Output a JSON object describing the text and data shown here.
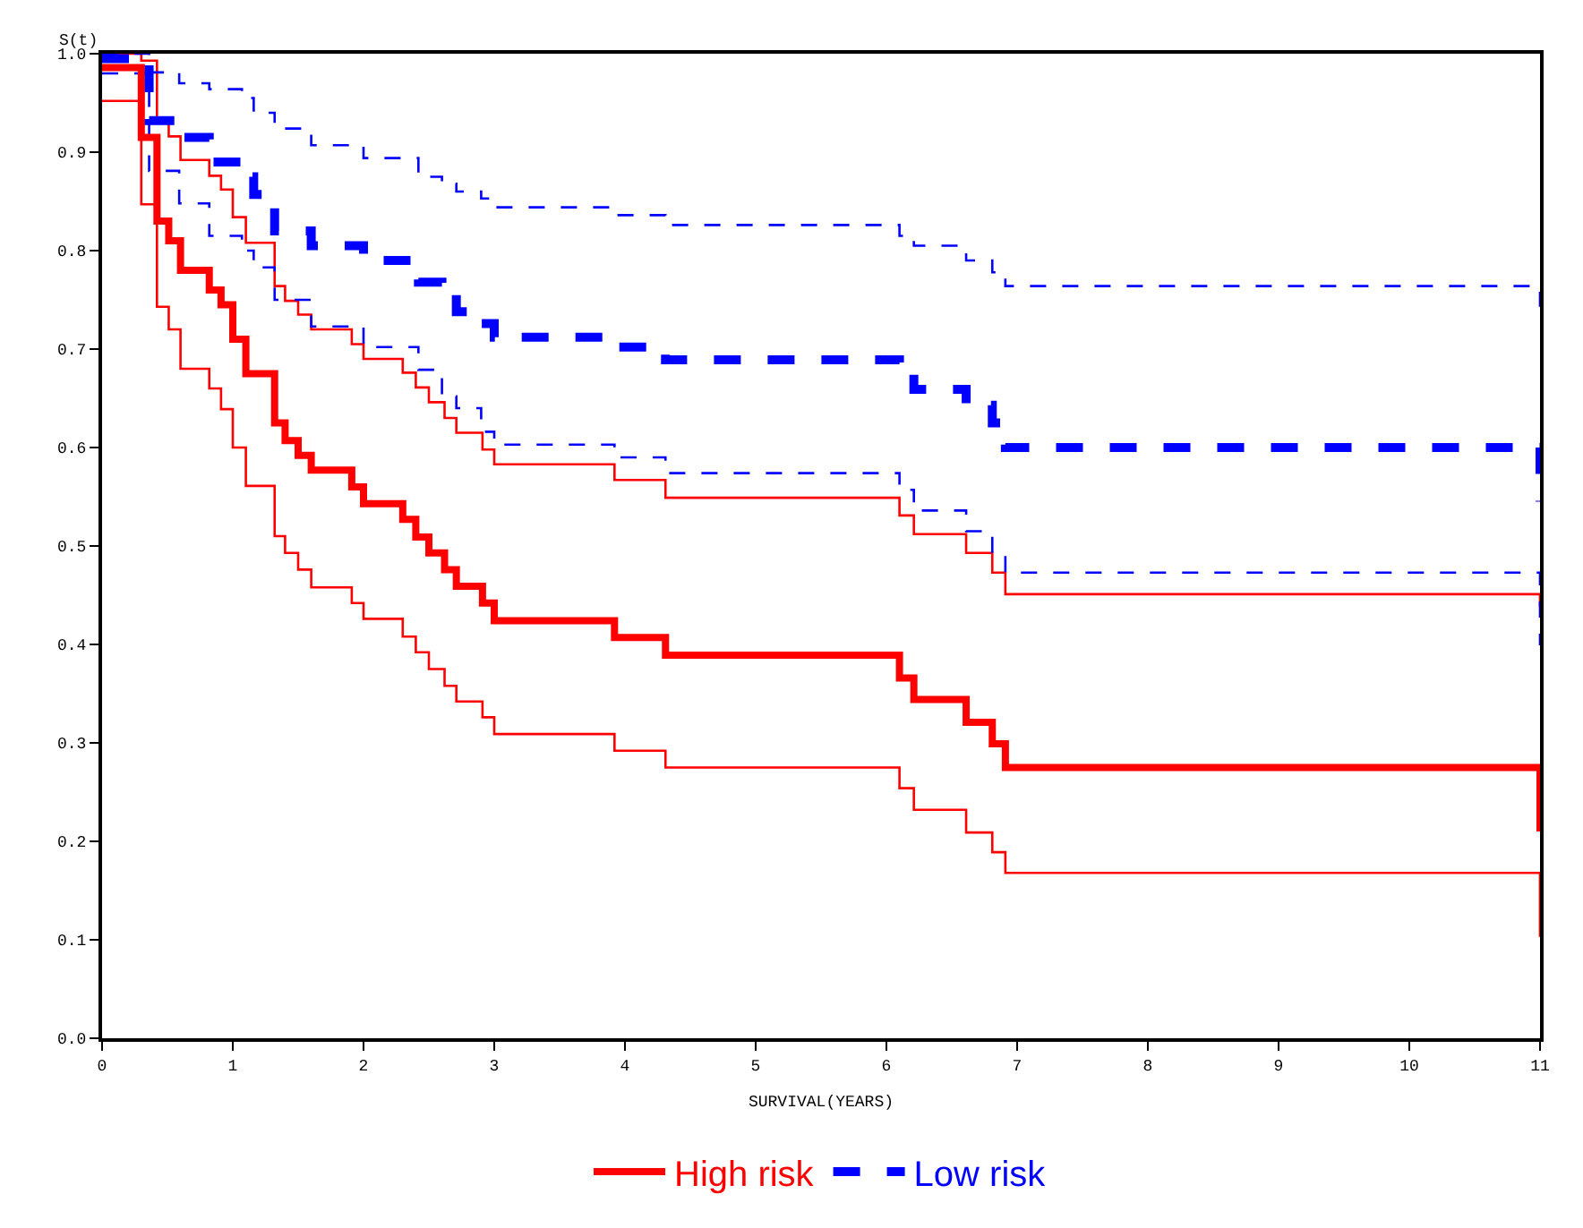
{
  "chart_data": {
    "type": "step",
    "xlabel": "SURVIVAL(YEARS)",
    "ylabel": "S(t)",
    "xlim": [
      0,
      11
    ],
    "xticks": [
      0,
      1,
      2,
      3,
      4,
      5,
      6,
      7,
      8,
      9,
      10,
      11
    ],
    "ylim": [
      0,
      1
    ],
    "yticks": [
      {
        "value": 0,
        "label": "0.0"
      },
      0.1,
      0.2,
      0.3,
      0.4,
      0.5,
      0.6,
      0.7,
      0.8,
      0.9,
      {
        "value": 1,
        "label": "1.0"
      }
    ],
    "grid": false,
    "legend": "bottom",
    "marker": "none",
    "series": [
      {
        "color": "#ff0000",
        "line_style": "solid",
        "x": [
          0,
          0.3,
          0.42,
          0.51,
          0.6,
          0.82,
          0.91,
          1.0,
          1.1,
          1.32,
          1.4,
          1.5,
          1.6,
          1.91,
          2.0,
          2.3,
          2.4,
          2.5,
          2.62,
          2.71,
          2.91,
          3.0,
          3.92,
          4.31,
          6.1,
          6.21,
          6.61,
          6.81,
          6.91,
          11
        ],
        "values": [
          0.952,
          0.847,
          0.743,
          0.72,
          0.68,
          0.66,
          0.639,
          0.6,
          0.561,
          0.51,
          0.493,
          0.476,
          0.458,
          0.442,
          0.426,
          0.408,
          0.392,
          0.375,
          0.358,
          0.342,
          0.326,
          0.309,
          0.292,
          0.275,
          0.254,
          0.232,
          0.209,
          0.189,
          0.168,
          0.103
        ]
      },
      {
        "color": "#ff0000",
        "line_style": "solid",
        "x": [
          0,
          0.3,
          0.42,
          0.51,
          0.6,
          0.82,
          0.91,
          1.0,
          1.1,
          1.32,
          1.4,
          1.5,
          1.6,
          1.91,
          2.0,
          2.3,
          2.4,
          2.5,
          2.62,
          2.71,
          2.91,
          3.0,
          3.92,
          4.31,
          6.1,
          6.21,
          6.61,
          6.81,
          6.91,
          11
        ],
        "values": [
          1.0,
          0.993,
          0.932,
          0.916,
          0.892,
          0.876,
          0.862,
          0.834,
          0.808,
          0.764,
          0.749,
          0.735,
          0.72,
          0.705,
          0.69,
          0.676,
          0.661,
          0.646,
          0.63,
          0.615,
          0.598,
          0.583,
          0.567,
          0.549,
          0.531,
          0.512,
          0.493,
          0.473,
          0.451,
          0.438
        ]
      },
      {
        "color": "#0000ff",
        "line_style": "dashed",
        "x": [
          0,
          0.36,
          0.59,
          0.82,
          1.07,
          1.16,
          1.32,
          1.6,
          2.0,
          2.42,
          2.6,
          2.71,
          2.9,
          3.0,
          3.92,
          4.31,
          6.1,
          6.21,
          6.61,
          6.81,
          6.91,
          11
        ],
        "values": [
          0.98,
          0.881,
          0.848,
          0.815,
          0.8,
          0.783,
          0.75,
          0.723,
          0.702,
          0.679,
          0.652,
          0.64,
          0.616,
          0.603,
          0.59,
          0.574,
          0.557,
          0.536,
          0.515,
          0.491,
          0.473,
          0.399
        ]
      },
      {
        "color": "#0000ff",
        "line_style": "dashed",
        "x": [
          0,
          0.36,
          0.59,
          0.82,
          1.07,
          1.16,
          1.32,
          1.6,
          2.0,
          2.42,
          2.6,
          2.71,
          2.9,
          3.0,
          3.92,
          4.31,
          6.1,
          6.21,
          6.61,
          6.81,
          6.91,
          11
        ],
        "values": [
          1.0,
          0.981,
          0.97,
          0.964,
          0.955,
          0.94,
          0.924,
          0.907,
          0.894,
          0.875,
          0.868,
          0.86,
          0.853,
          0.844,
          0.836,
          0.826,
          0.815,
          0.805,
          0.79,
          0.778,
          0.764,
          0.743
        ]
      },
      {
        "name": "High risk",
        "color": "#ff0000",
        "line_style": "solid",
        "x": [
          0,
          0.3,
          0.42,
          0.51,
          0.6,
          0.82,
          0.91,
          1.0,
          1.1,
          1.32,
          1.4,
          1.5,
          1.6,
          1.91,
          2.0,
          2.3,
          2.4,
          2.5,
          2.62,
          2.71,
          2.91,
          3.0,
          3.92,
          4.31,
          6.1,
          6.21,
          6.61,
          6.81,
          6.91,
          11
        ],
        "values": [
          0.986,
          0.915,
          0.83,
          0.81,
          0.78,
          0.76,
          0.745,
          0.71,
          0.675,
          0.625,
          0.607,
          0.592,
          0.577,
          0.56,
          0.543,
          0.527,
          0.509,
          0.493,
          0.476,
          0.459,
          0.442,
          0.424,
          0.407,
          0.389,
          0.366,
          0.344,
          0.321,
          0.299,
          0.275,
          0.21
        ]
      },
      {
        "name": "Low risk",
        "color": "#0000ff",
        "line_style": "dashed",
        "x": [
          0,
          0.36,
          0.59,
          0.82,
          1.07,
          1.16,
          1.32,
          1.6,
          2.0,
          2.42,
          2.6,
          2.71,
          2.9,
          3.0,
          3.92,
          4.31,
          6.1,
          6.21,
          6.61,
          6.81,
          6.91,
          11
        ],
        "values": [
          0.995,
          0.932,
          0.915,
          0.89,
          0.875,
          0.857,
          0.82,
          0.805,
          0.79,
          0.768,
          0.756,
          0.738,
          0.726,
          0.712,
          0.702,
          0.689,
          0.675,
          0.659,
          0.643,
          0.625,
          0.6,
          0.545
        ]
      }
    ]
  }
}
